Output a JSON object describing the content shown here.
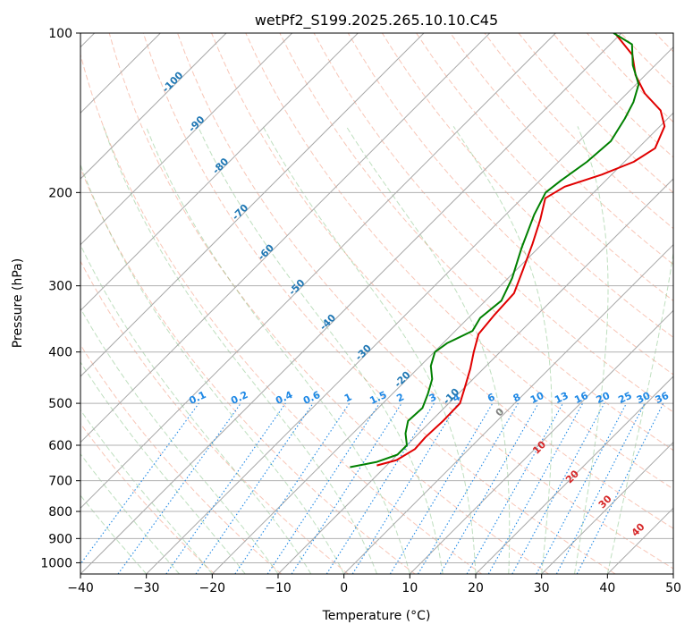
{
  "chart_data": {
    "type": "line",
    "title": "wetPf2_S199.2025.265.10.10.C45",
    "xlabel": "Temperature (°C)",
    "ylabel": "Pressure (hPa)",
    "xlim": [
      -40,
      50
    ],
    "ylim": [
      1050,
      100
    ],
    "y_scale": "log",
    "skew": true,
    "grid": true,
    "x_ticks": [
      "−40",
      "−30",
      "−20",
      "−10",
      "0",
      "10",
      "20",
      "30",
      "40",
      "50"
    ],
    "y_ticks": [
      "100",
      "200",
      "300",
      "400",
      "500",
      "600",
      "700",
      "800",
      "900",
      "1000"
    ],
    "isotherm_labels": [
      "-100",
      "-90",
      "-80",
      "-70",
      "-60",
      "-50",
      "-40",
      "-30",
      "-20",
      "-10"
    ],
    "mixing_ratio_labels": [
      "0.1",
      "0.2",
      "0.4",
      "0.6",
      "1",
      "1.5",
      "2",
      "3",
      "4",
      "6",
      "8",
      "10",
      "13",
      "16",
      "20",
      "25",
      "30",
      "36"
    ],
    "dry_adiabat_labels": [
      "0",
      "10",
      "20",
      "30",
      "40"
    ],
    "series": [
      {
        "color": "#e00000",
        "role": "temperature",
        "points": [
          {
            "p": 655,
            "t": -11.5
          },
          {
            "p": 640,
            "t": -9.3
          },
          {
            "p": 610,
            "t": -8.2
          },
          {
            "p": 580,
            "t": -8.4
          },
          {
            "p": 540,
            "t": -8.2
          },
          {
            "p": 500,
            "t": -8.3
          },
          {
            "p": 470,
            "t": -9.8
          },
          {
            "p": 430,
            "t": -12.0
          },
          {
            "p": 400,
            "t": -14.0
          },
          {
            "p": 370,
            "t": -16.0
          },
          {
            "p": 340,
            "t": -16.5
          },
          {
            "p": 310,
            "t": -16.8
          },
          {
            "p": 280,
            "t": -19.0
          },
          {
            "p": 250,
            "t": -21.5
          },
          {
            "p": 225,
            "t": -24.0
          },
          {
            "p": 205,
            "t": -26.5
          },
          {
            "p": 195,
            "t": -25.3
          },
          {
            "p": 185,
            "t": -21.5
          },
          {
            "p": 175,
            "t": -18.6
          },
          {
            "p": 165,
            "t": -17.4
          },
          {
            "p": 150,
            "t": -19.3
          },
          {
            "p": 140,
            "t": -22.3
          },
          {
            "p": 130,
            "t": -27.3
          },
          {
            "p": 120,
            "t": -31.5
          },
          {
            "p": 110,
            "t": -35.0
          },
          {
            "p": 100,
            "t": -41.0
          }
        ]
      },
      {
        "color": "#008000",
        "role": "dewpoint",
        "points": [
          {
            "p": 660,
            "t": -15.3
          },
          {
            "p": 645,
            "t": -12.0
          },
          {
            "p": 625,
            "t": -10.0
          },
          {
            "p": 600,
            "t": -10.0
          },
          {
            "p": 570,
            "t": -12.0
          },
          {
            "p": 540,
            "t": -13.5
          },
          {
            "p": 510,
            "t": -13.3
          },
          {
            "p": 480,
            "t": -14.6
          },
          {
            "p": 450,
            "t": -16.2
          },
          {
            "p": 425,
            "t": -18.4
          },
          {
            "p": 400,
            "t": -19.9
          },
          {
            "p": 385,
            "t": -19.4
          },
          {
            "p": 365,
            "t": -17.4
          },
          {
            "p": 345,
            "t": -18.2
          },
          {
            "p": 320,
            "t": -17.6
          },
          {
            "p": 290,
            "t": -19.4
          },
          {
            "p": 255,
            "t": -22.5
          },
          {
            "p": 220,
            "t": -25.7
          },
          {
            "p": 200,
            "t": -27.3
          },
          {
            "p": 190,
            "t": -26.8
          },
          {
            "p": 175,
            "t": -25.7
          },
          {
            "p": 160,
            "t": -25.2
          },
          {
            "p": 145,
            "t": -26.5
          },
          {
            "p": 135,
            "t": -27.7
          },
          {
            "p": 125,
            "t": -29.6
          },
          {
            "p": 115,
            "t": -33.4
          },
          {
            "p": 105,
            "t": -36.7
          },
          {
            "p": 100,
            "t": -41.2
          }
        ]
      }
    ]
  }
}
